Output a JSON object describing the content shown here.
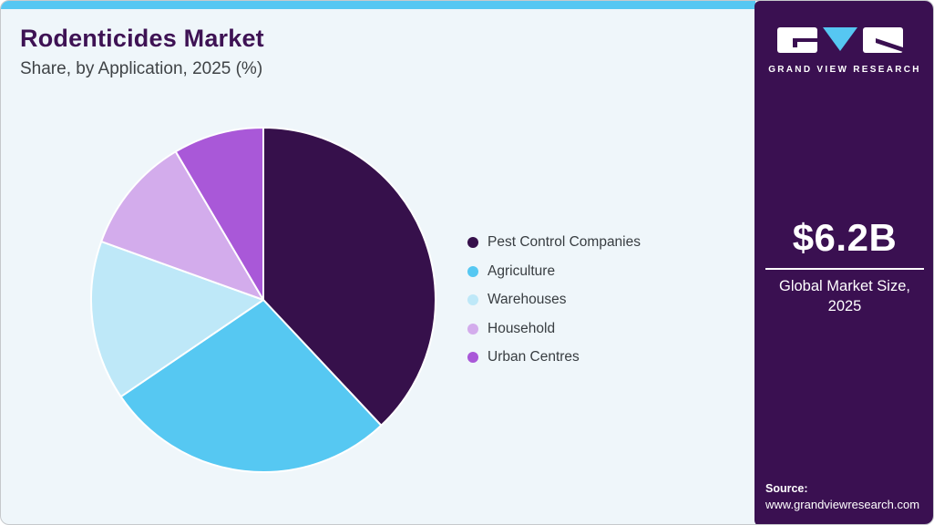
{
  "header": {
    "title": "Rodenticides Market",
    "subtitle": "Share, by Application, 2025 (%)"
  },
  "chart_data": {
    "type": "pie",
    "title": "Rodenticides Market Share, by Application, 2025 (%)",
    "categories": [
      "Pest Control Companies",
      "Agriculture",
      "Warehouses",
      "Household",
      "Urban Centres"
    ],
    "values": [
      38,
      27.5,
      15,
      11,
      8.5
    ],
    "colors": [
      "#36104B",
      "#56C8F2",
      "#BEE8F8",
      "#D3ACEC",
      "#A958D8"
    ],
    "start_angle_deg": -90,
    "direction": "clockwise",
    "legend_position": "right",
    "labels_shown": false,
    "slice_separator_color": "#FFFFFF"
  },
  "sidebar": {
    "logo": {
      "brand": "GRAND VIEW RESEARCH",
      "letters": [
        "G",
        "V",
        "R"
      ]
    },
    "market_size_value": "$6.2B",
    "market_size_label_line1": "Global Market Size,",
    "market_size_label_line2": "2025",
    "source_label": "Source:",
    "source_url": "www.grandviewresearch.com"
  },
  "colors": {
    "accent_cyan": "#56C7F2",
    "brand_dark_purple": "#3A1051",
    "title_purple": "#3E1254",
    "page_background": "#EFF6FA",
    "body_text": "#383D41"
  }
}
